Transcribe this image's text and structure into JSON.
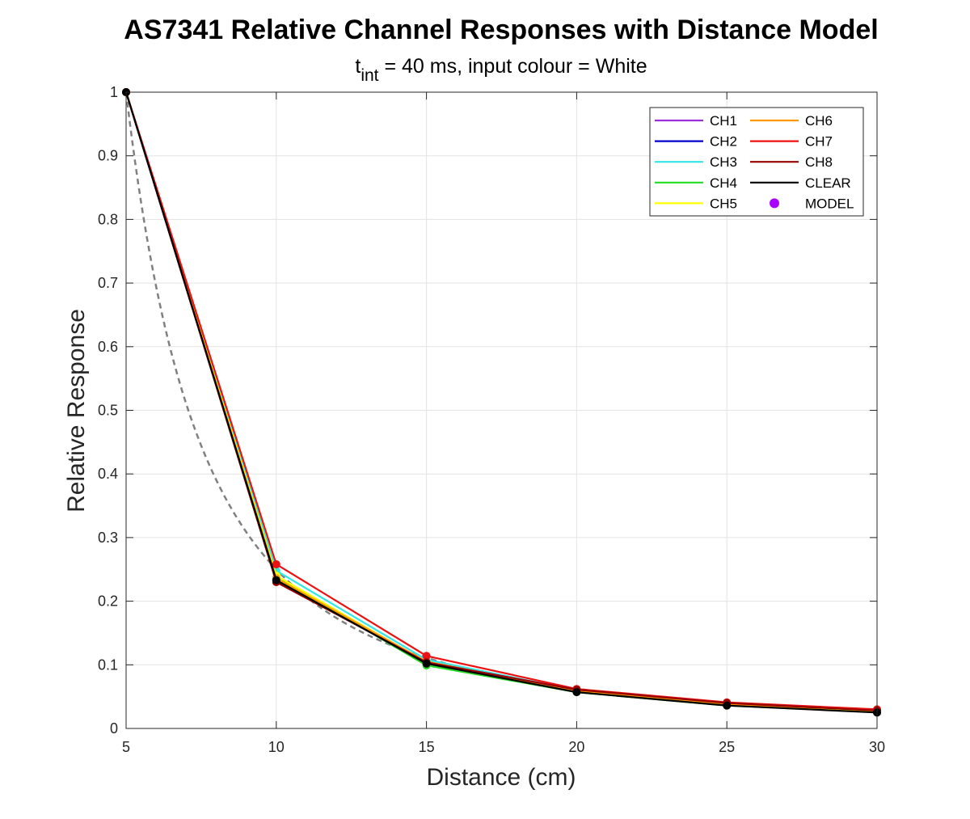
{
  "chart_data": {
    "type": "line",
    "title": "AS7341 Relative Channel Responses with Distance Model",
    "subtitle": {
      "prefix": "t",
      "subscript": "int",
      "suffix": " = 40 ms, input colour = White"
    },
    "xlabel": "Distance (cm)",
    "ylabel": "Relative Response",
    "xlim": [
      5,
      30
    ],
    "ylim": [
      0,
      1
    ],
    "xticks": [
      5,
      10,
      15,
      20,
      25,
      30
    ],
    "yticks": [
      0,
      0.1,
      0.2,
      0.3,
      0.4,
      0.5,
      0.6,
      0.7,
      0.8,
      0.9,
      1
    ],
    "xtick_labels": [
      "5",
      "10",
      "15",
      "20",
      "25",
      "30"
    ],
    "ytick_labels": [
      "0",
      "0.1",
      "0.2",
      "0.3",
      "0.4",
      "0.5",
      "0.6",
      "0.7",
      "0.8",
      "0.9",
      "1"
    ],
    "grid": true,
    "legend_position": "top-right",
    "x": [
      5,
      10,
      15,
      20,
      25,
      30
    ],
    "series": [
      {
        "name": "CH1",
        "color": "#9B30D9",
        "values": [
          1,
          0.235,
          0.103,
          0.058,
          0.037,
          0.026
        ]
      },
      {
        "name": "CH2",
        "color": "#0000CC",
        "values": [
          1,
          0.233,
          0.102,
          0.058,
          0.037,
          0.026
        ]
      },
      {
        "name": "CH3",
        "color": "#33E6E6",
        "values": [
          1,
          0.248,
          0.108,
          0.06,
          0.038,
          0.027
        ]
      },
      {
        "name": "CH4",
        "color": "#22DD22",
        "values": [
          1,
          0.238,
          0.099,
          0.057,
          0.036,
          0.026
        ]
      },
      {
        "name": "CH5",
        "color": "#FFFF00",
        "values": [
          1,
          0.24,
          0.104,
          0.059,
          0.037,
          0.027
        ]
      },
      {
        "name": "CH6",
        "color": "#FF9900",
        "values": [
          1,
          0.236,
          0.105,
          0.059,
          0.038,
          0.029
        ]
      },
      {
        "name": "CH7",
        "color": "#EE1111",
        "values": [
          1,
          0.258,
          0.114,
          0.062,
          0.041,
          0.03
        ]
      },
      {
        "name": "CH8",
        "color": "#990000",
        "values": [
          1,
          0.23,
          0.104,
          0.061,
          0.04,
          0.028
        ]
      },
      {
        "name": "CLEAR",
        "color": "#000000",
        "values": [
          1,
          0.233,
          0.102,
          0.057,
          0.036,
          0.025
        ]
      }
    ],
    "model": {
      "name": "MODEL",
      "color": "#808080",
      "marker_color": "#AA00FF",
      "style": "dashed",
      "formula": "25 / x^2"
    }
  }
}
